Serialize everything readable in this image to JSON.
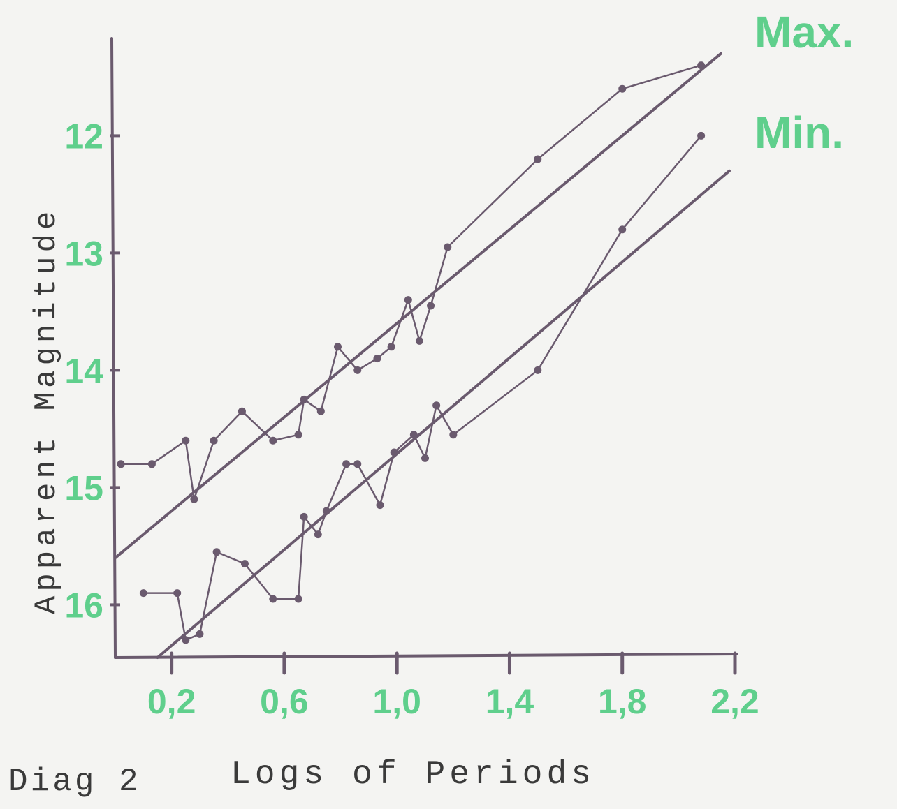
{
  "caption": "Diag 2",
  "chart_data": {
    "type": "line",
    "xlabel": "Logs of Periods",
    "ylabel": "Apparent Magnitude",
    "x_ticks": [
      "0,2",
      "0,6",
      "1,0",
      "1,4",
      "1,8",
      "2,2"
    ],
    "y_ticks": [
      "12",
      "13",
      "14",
      "15",
      "16"
    ],
    "xlim": [
      0,
      2.2
    ],
    "ylim": [
      16.45,
      11.2
    ],
    "y_inverted": true,
    "colors": {
      "axis": "#6a5a6e",
      "data": "#6a5a6e",
      "labels": "#5fcf8c"
    },
    "series": [
      {
        "name": "Max.",
        "points": [
          [
            0.02,
            14.8
          ],
          [
            0.13,
            14.8
          ],
          [
            0.25,
            14.6
          ],
          [
            0.28,
            15.1
          ],
          [
            0.35,
            14.6
          ],
          [
            0.45,
            14.35
          ],
          [
            0.56,
            14.6
          ],
          [
            0.65,
            14.55
          ],
          [
            0.67,
            14.25
          ],
          [
            0.73,
            14.35
          ],
          [
            0.79,
            13.8
          ],
          [
            0.86,
            14.0
          ],
          [
            0.93,
            13.9
          ],
          [
            0.98,
            13.8
          ],
          [
            1.04,
            13.4
          ],
          [
            1.08,
            13.75
          ],
          [
            1.12,
            13.45
          ],
          [
            1.18,
            12.95
          ],
          [
            1.5,
            12.2
          ],
          [
            1.8,
            11.6
          ],
          [
            2.08,
            11.4
          ]
        ],
        "fit": [
          [
            0.0,
            15.6
          ],
          [
            2.15,
            11.3
          ]
        ]
      },
      {
        "name": "Min.",
        "points": [
          [
            0.1,
            15.9
          ],
          [
            0.22,
            15.9
          ],
          [
            0.25,
            16.3
          ],
          [
            0.3,
            16.25
          ],
          [
            0.36,
            15.55
          ],
          [
            0.46,
            15.65
          ],
          [
            0.56,
            15.95
          ],
          [
            0.65,
            15.95
          ],
          [
            0.67,
            15.25
          ],
          [
            0.72,
            15.4
          ],
          [
            0.75,
            15.2
          ],
          [
            0.82,
            14.8
          ],
          [
            0.86,
            14.8
          ],
          [
            0.94,
            15.15
          ],
          [
            0.99,
            14.7
          ],
          [
            1.06,
            14.55
          ],
          [
            1.1,
            14.75
          ],
          [
            1.14,
            14.3
          ],
          [
            1.2,
            14.55
          ],
          [
            1.5,
            14.0
          ],
          [
            1.8,
            12.8
          ],
          [
            2.08,
            12.0
          ]
        ],
        "fit": [
          [
            0.15,
            16.45
          ],
          [
            2.18,
            12.3
          ]
        ]
      }
    ]
  }
}
